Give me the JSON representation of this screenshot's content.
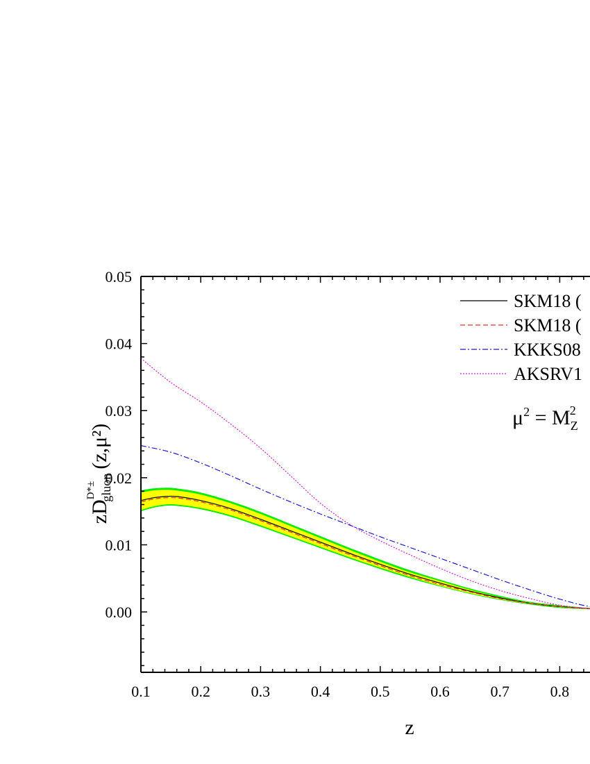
{
  "chart_data": {
    "type": "line",
    "title": "",
    "xlabel": "z",
    "ylabel": {
      "prefix": "zD",
      "superscript": "D*±",
      "subscript": "gluon",
      "suffix": "(z,μ²)"
    },
    "xlim": [
      0.1,
      0.9
    ],
    "ylim": [
      -0.009,
      0.05
    ],
    "x_ticks": [
      {
        "value": 0.1,
        "label": "0.1"
      },
      {
        "value": 0.2,
        "label": "0.2"
      },
      {
        "value": 0.3,
        "label": "0.3"
      },
      {
        "value": 0.4,
        "label": "0.4"
      },
      {
        "value": 0.5,
        "label": "0.5"
      },
      {
        "value": 0.6,
        "label": "0.6"
      },
      {
        "value": 0.7,
        "label": "0.7"
      },
      {
        "value": 0.8,
        "label": "0.8"
      }
    ],
    "y_ticks": [
      {
        "value": 0.0,
        "label": "0.00"
      },
      {
        "value": 0.01,
        "label": "0.01"
      },
      {
        "value": 0.02,
        "label": "0.02"
      },
      {
        "value": 0.03,
        "label": "0.03"
      },
      {
        "value": 0.04,
        "label": "0.04"
      },
      {
        "value": 0.05,
        "label": "0.05"
      }
    ],
    "grid": false,
    "legend_position": "top-right",
    "annotation": {
      "base": "μ",
      "sup1": "2",
      "eq": " = M",
      "sub": "Z",
      "sup2": "2"
    },
    "series": [
      {
        "name": "SKM18 (",
        "color": "#000000",
        "style": "solid",
        "x": [
          0.1,
          0.12,
          0.14,
          0.16,
          0.2,
          0.25,
          0.3,
          0.35,
          0.4,
          0.45,
          0.5,
          0.55,
          0.6,
          0.65,
          0.7,
          0.75,
          0.8,
          0.85,
          0.9
        ],
        "y": [
          0.0166,
          0.017,
          0.0172,
          0.0172,
          0.0166,
          0.0154,
          0.0138,
          0.0121,
          0.0104,
          0.0087,
          0.0071,
          0.0056,
          0.0043,
          0.0031,
          0.0021,
          0.0013,
          0.0008,
          0.0005,
          0.0004
        ]
      },
      {
        "name": "SKM18 (",
        "color": "#e03030",
        "style": "dashed",
        "x": [
          0.1,
          0.12,
          0.14,
          0.16,
          0.2,
          0.25,
          0.3,
          0.35,
          0.4,
          0.45,
          0.5,
          0.55,
          0.6,
          0.65,
          0.7,
          0.75,
          0.8,
          0.85,
          0.9
        ],
        "y": [
          0.0164,
          0.0168,
          0.017,
          0.017,
          0.0164,
          0.0152,
          0.0136,
          0.0119,
          0.0102,
          0.0085,
          0.0069,
          0.0054,
          0.0041,
          0.003,
          0.002,
          0.0013,
          0.0008,
          0.0005,
          0.0004
        ]
      },
      {
        "name": "KKKS08",
        "color": "#1a1acc",
        "style": "dashdot",
        "x": [
          0.1,
          0.15,
          0.2,
          0.25,
          0.3,
          0.35,
          0.4,
          0.45,
          0.5,
          0.55,
          0.6,
          0.65,
          0.7,
          0.75,
          0.8,
          0.85,
          0.9
        ],
        "y": [
          0.0248,
          0.0238,
          0.0222,
          0.0203,
          0.0183,
          0.0164,
          0.0146,
          0.0129,
          0.0112,
          0.0096,
          0.008,
          0.0064,
          0.0048,
          0.0033,
          0.0019,
          0.0008,
          0.0004
        ]
      },
      {
        "name": "AKSRV1",
        "color": "#d020d0",
        "style": "dotted",
        "x": [
          0.1,
          0.15,
          0.2,
          0.25,
          0.3,
          0.35,
          0.4,
          0.45,
          0.5,
          0.55,
          0.6,
          0.65,
          0.7,
          0.75,
          0.8,
          0.85,
          0.9
        ],
        "y": [
          0.0378,
          0.0342,
          0.0313,
          0.028,
          0.0244,
          0.0203,
          0.0162,
          0.013,
          0.0106,
          0.0085,
          0.0065,
          0.0047,
          0.0032,
          0.002,
          0.001,
          0.0005,
          0.0003
        ]
      }
    ],
    "bands": [
      {
        "color": "#00ee00",
        "x": [
          0.1,
          0.12,
          0.14,
          0.16,
          0.2,
          0.25,
          0.3,
          0.35,
          0.4,
          0.45,
          0.5,
          0.55,
          0.6,
          0.65,
          0.7,
          0.75,
          0.8,
          0.85,
          0.9
        ],
        "upper": [
          0.0181,
          0.0184,
          0.0185,
          0.0184,
          0.0178,
          0.0165,
          0.0149,
          0.0131,
          0.0113,
          0.0095,
          0.0078,
          0.0062,
          0.0048,
          0.0035,
          0.0024,
          0.0015,
          0.001,
          0.0006,
          0.0005
        ],
        "lower": [
          0.015,
          0.0155,
          0.0158,
          0.0158,
          0.0153,
          0.0142,
          0.0127,
          0.0111,
          0.0095,
          0.0079,
          0.0064,
          0.005,
          0.0038,
          0.0027,
          0.0018,
          0.0011,
          0.0006,
          0.0004,
          0.0003
        ]
      },
      {
        "color": "#ffff00",
        "x": [
          0.1,
          0.12,
          0.14,
          0.16,
          0.2,
          0.25,
          0.3,
          0.35,
          0.4,
          0.45,
          0.5,
          0.55,
          0.6,
          0.65,
          0.7,
          0.75,
          0.8,
          0.85,
          0.9
        ],
        "upper": [
          0.0178,
          0.0181,
          0.0182,
          0.0181,
          0.0175,
          0.0162,
          0.0146,
          0.0128,
          0.011,
          0.0092,
          0.0075,
          0.0059,
          0.0046,
          0.0033,
          0.0022,
          0.0014,
          0.0009,
          0.0006,
          0.0005
        ],
        "lower": [
          0.0152,
          0.0157,
          0.016,
          0.016,
          0.0155,
          0.0144,
          0.0129,
          0.0113,
          0.0097,
          0.0081,
          0.0066,
          0.0052,
          0.0039,
          0.0028,
          0.0019,
          0.0012,
          0.0007,
          0.0004,
          0.0003
        ]
      }
    ]
  }
}
